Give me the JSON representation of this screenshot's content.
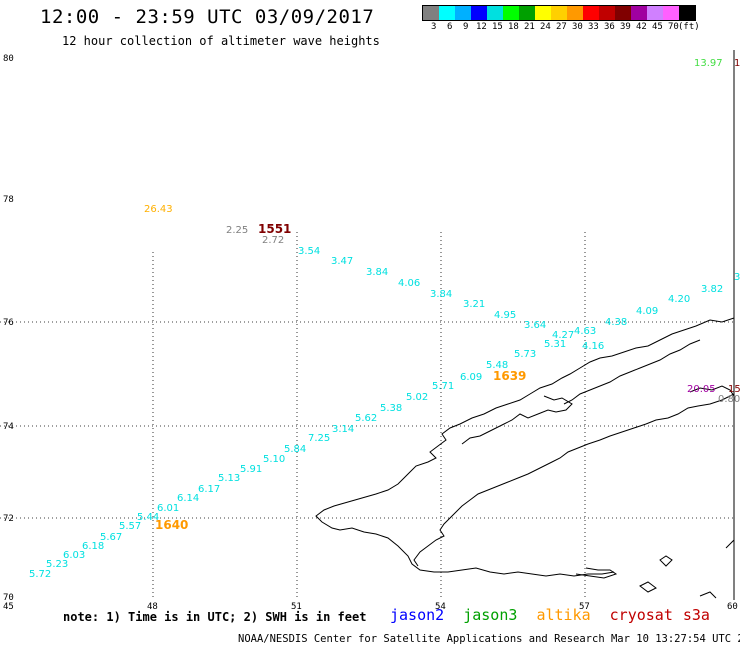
{
  "header": {
    "title": "12:00 - 23:59 UTC 03/09/2017",
    "subtitle": "12 hour collection of altimeter wave heights"
  },
  "colorbar": {
    "colors": [
      "#808080",
      "#00ffff",
      "#00b0ff",
      "#0000ff",
      "#00e0e0",
      "#00ff00",
      "#00a000",
      "#ffff00",
      "#ffd000",
      "#ff9900",
      "#ff0000",
      "#c00000",
      "#800000",
      "#a000a0",
      "#d080ff",
      "#ff60ff",
      "#000000"
    ],
    "labels": [
      "3",
      "6",
      "9",
      "12",
      "15",
      "18",
      "21",
      "24",
      "27",
      "30",
      "33",
      "36",
      "39",
      "42",
      "45",
      "70",
      "(ft)"
    ]
  },
  "axes": {
    "lat_labels": [
      "80",
      "78",
      "76",
      "74",
      "72",
      "70"
    ],
    "lon_labels": [
      "45",
      "48",
      "51",
      "54",
      "57",
      "60"
    ]
  },
  "satellites": {
    "jason2": {
      "label": "jason2",
      "color": "#0000ff"
    },
    "jason3": {
      "label": "jason3",
      "color": "#00a000"
    },
    "altika": {
      "label": "altika",
      "color": "#ff9900"
    },
    "cryosat": {
      "label": "cryosat",
      "color": "#c00000"
    },
    "s3a": {
      "label": "s3a",
      "color": "#c00000"
    }
  },
  "observations": [
    {
      "text": "13.97",
      "color": "#44dd44"
    },
    {
      "text": "1",
      "color": "#800000"
    },
    {
      "text": "26.43",
      "color": "#ffb000"
    },
    {
      "text": "2.25",
      "color": "#808080"
    },
    {
      "text": "1551",
      "color": "#800000"
    },
    {
      "text": "2.72",
      "color": "#808080"
    },
    {
      "text": "3.54",
      "color": "#00e0e0"
    },
    {
      "text": "3.47",
      "color": "#00e0e0"
    },
    {
      "text": "3.84",
      "color": "#00e0e0"
    },
    {
      "text": "4.06",
      "color": "#00e0e0"
    },
    {
      "text": "3.84",
      "color": "#00e0e0"
    },
    {
      "text": "3.21",
      "color": "#00e0e0"
    },
    {
      "text": "4.95",
      "color": "#00e0e0"
    },
    {
      "text": "3.64",
      "color": "#00e0e0"
    },
    {
      "text": "4.27",
      "color": "#00e0e0"
    },
    {
      "text": "4.63",
      "color": "#00e0e0"
    },
    {
      "text": "4.38",
      "color": "#00e0e0"
    },
    {
      "text": "4.09",
      "color": "#00e0e0"
    },
    {
      "text": "4.20",
      "color": "#00e0e0"
    },
    {
      "text": "3.82",
      "color": "#00e0e0"
    },
    {
      "text": "3",
      "color": "#00e0e0"
    },
    {
      "text": "5.31",
      "color": "#00e0e0"
    },
    {
      "text": "4.16",
      "color": "#00e0e0"
    },
    {
      "text": "5.73",
      "color": "#00e0e0"
    },
    {
      "text": "5.48",
      "color": "#00e0e0"
    },
    {
      "text": "6.09",
      "color": "#00e0e0"
    },
    {
      "text": "1639",
      "color": "#ff9900"
    },
    {
      "text": "5.71",
      "color": "#00e0e0"
    },
    {
      "text": "5.02",
      "color": "#00e0e0"
    },
    {
      "text": "5.38",
      "color": "#00e0e0"
    },
    {
      "text": "5.62",
      "color": "#00e0e0"
    },
    {
      "text": "3.14",
      "color": "#00e0e0"
    },
    {
      "text": "7.25",
      "color": "#00e0e0"
    },
    {
      "text": "5.84",
      "color": "#00e0e0"
    },
    {
      "text": "5.10",
      "color": "#00e0e0"
    },
    {
      "text": "5.91",
      "color": "#00e0e0"
    },
    {
      "text": "5.13",
      "color": "#00e0e0"
    },
    {
      "text": "6.17",
      "color": "#00e0e0"
    },
    {
      "text": "6.14",
      "color": "#00e0e0"
    },
    {
      "text": "6.01",
      "color": "#00e0e0"
    },
    {
      "text": "5.44",
      "color": "#00e0e0"
    },
    {
      "text": "5.57",
      "color": "#00e0e0"
    },
    {
      "text": "1640",
      "color": "#ff9900"
    },
    {
      "text": "5.67",
      "color": "#00e0e0"
    },
    {
      "text": "6.18",
      "color": "#00e0e0"
    },
    {
      "text": "6.03",
      "color": "#00e0e0"
    },
    {
      "text": "5.23",
      "color": "#00e0e0"
    },
    {
      "text": "5.72",
      "color": "#00e0e0"
    },
    {
      "text": "20.05",
      "color": "#a000a0"
    },
    {
      "text": "15",
      "color": "#800000"
    },
    {
      "text": "0.80",
      "color": "#808080"
    }
  ],
  "footer": {
    "note": "note: 1) Time is in UTC; 2) SWH is in feet",
    "credit": "NOAA/NESDIS Center for Satellite Applications and Research   Mar 10 13:27:54 UTC 2017"
  }
}
